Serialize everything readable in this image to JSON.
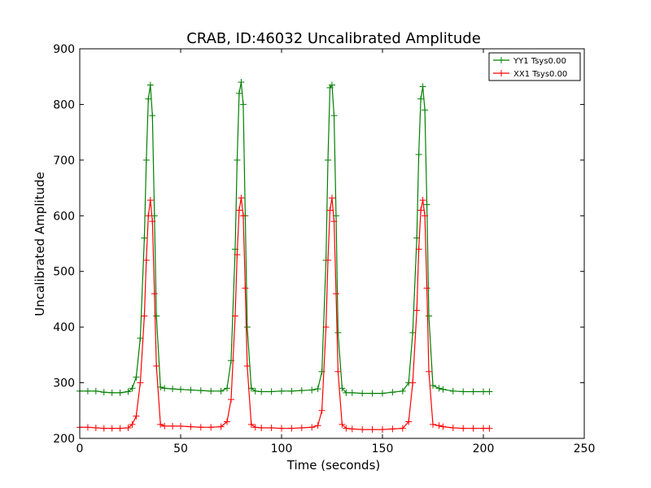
{
  "chart_data": {
    "type": "line",
    "title": "CRAB, ID:46032 Uncalibrated Amplitude",
    "xlabel": "Time (seconds)",
    "ylabel": "Uncalibrated Amplitude",
    "xlim": [
      0,
      250
    ],
    "ylim": [
      200,
      900
    ],
    "xticks": [
      "0",
      "50",
      "100",
      "150",
      "200",
      "250"
    ],
    "yticks": [
      "200",
      "300",
      "400",
      "500",
      "600",
      "700",
      "800",
      "900"
    ],
    "grid": false,
    "legend_position": "top-right",
    "marker": "+",
    "series": [
      {
        "name": "YY1 Tsys0.00",
        "color": "#008000",
        "x": [
          0,
          4,
          8,
          12,
          16,
          20,
          24,
          26,
          28,
          30,
          32,
          33,
          34,
          35,
          36,
          37,
          38,
          40,
          42,
          46,
          50,
          55,
          60,
          65,
          70,
          73,
          75,
          77,
          78,
          79,
          80,
          81,
          82,
          83,
          85,
          87,
          90,
          95,
          100,
          105,
          110,
          115,
          118,
          120,
          122,
          123,
          124,
          125,
          126,
          127,
          128,
          130,
          132,
          135,
          140,
          145,
          150,
          155,
          160,
          163,
          165,
          167,
          168,
          169,
          170,
          171,
          172,
          173,
          175,
          178,
          180,
          185,
          190,
          195,
          200,
          203
        ],
        "values": [
          285,
          285,
          285,
          283,
          282,
          282,
          284,
          290,
          310,
          380,
          560,
          700,
          810,
          835,
          780,
          600,
          420,
          292,
          290,
          289,
          288,
          287,
          286,
          285,
          285,
          290,
          340,
          540,
          700,
          820,
          840,
          800,
          600,
          400,
          290,
          285,
          284,
          284,
          285,
          285,
          286,
          287,
          289,
          320,
          520,
          700,
          830,
          835,
          780,
          600,
          390,
          290,
          282,
          282,
          281,
          281,
          281,
          283,
          285,
          300,
          390,
          560,
          710,
          810,
          832,
          790,
          620,
          420,
          295,
          290,
          288,
          285,
          284,
          284,
          284,
          284
        ]
      },
      {
        "name": "XX1 Tsys0.00",
        "color": "#ff0000",
        "x": [
          0,
          4,
          8,
          12,
          16,
          20,
          24,
          26,
          28,
          30,
          32,
          33,
          34,
          35,
          36,
          37,
          38,
          40,
          42,
          46,
          50,
          55,
          60,
          65,
          70,
          73,
          75,
          77,
          78,
          79,
          80,
          81,
          82,
          83,
          85,
          87,
          90,
          95,
          100,
          105,
          110,
          115,
          118,
          120,
          122,
          123,
          124,
          125,
          126,
          127,
          128,
          130,
          132,
          135,
          140,
          145,
          150,
          155,
          160,
          163,
          165,
          167,
          168,
          169,
          170,
          171,
          172,
          173,
          175,
          178,
          180,
          185,
          190,
          195,
          200,
          203
        ],
        "values": [
          220,
          220,
          219,
          218,
          218,
          218,
          219,
          225,
          240,
          300,
          420,
          520,
          600,
          628,
          590,
          460,
          330,
          225,
          222,
          222,
          222,
          221,
          220,
          220,
          221,
          230,
          270,
          420,
          530,
          610,
          632,
          600,
          470,
          330,
          225,
          220,
          219,
          219,
          218,
          218,
          219,
          220,
          223,
          250,
          400,
          520,
          610,
          632,
          590,
          460,
          320,
          225,
          218,
          217,
          216,
          216,
          216,
          217,
          218,
          230,
          300,
          430,
          540,
          610,
          628,
          600,
          470,
          320,
          225,
          223,
          221,
          219,
          218,
          218,
          218,
          218
        ]
      }
    ]
  }
}
